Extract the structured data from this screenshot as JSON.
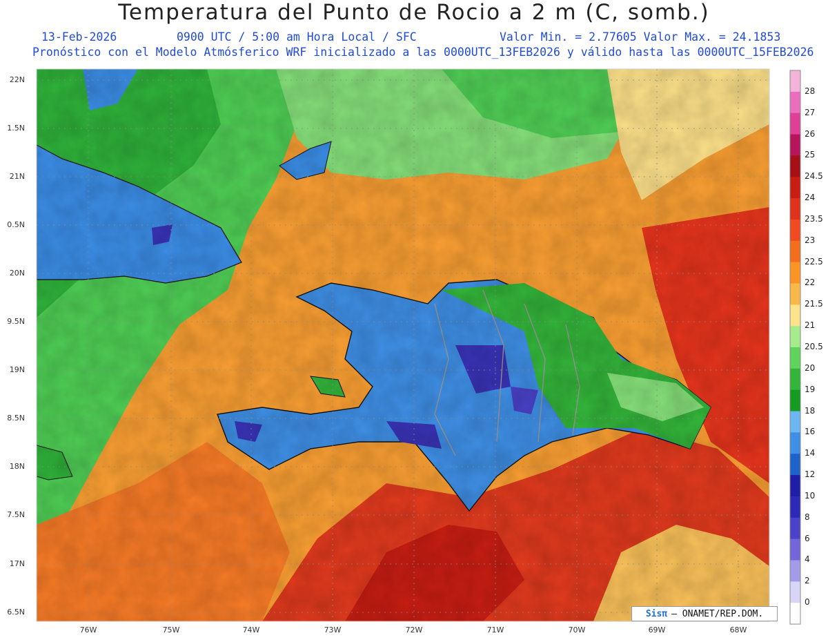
{
  "header": {
    "title": "Temperatura del Punto de Rocio a 2 m (C, somb.)",
    "date": "13-Feb-2026",
    "time": "0900 UTC / 5:00 am Hora Local / SFC",
    "minmax": "Valor Min. = 2.77605  Valor Max. = 24.1853",
    "model": "Pronóstico con el Modelo Atmósferico WRF inicializado a las 0000UTC_13FEB2026 y válido hasta las  0000UTC_15FEB2026"
  },
  "lat_labels": [
    "22N",
    "1.5N",
    "21N",
    "0.5N",
    "20N",
    "9.5N",
    "19N",
    "8.5N",
    "18N",
    "7.5N",
    "17N",
    "6.5N"
  ],
  "lon_labels": [
    "76W",
    "75W",
    "74W",
    "73W",
    "72W",
    "71W",
    "70W",
    "69W",
    "68W"
  ],
  "colorbar": {
    "labels": [
      "28",
      "27",
      "26",
      "25",
      "24.5",
      "24",
      "23.5",
      "23",
      "22.5",
      "22",
      "21.5",
      "21",
      "20.5",
      "20",
      "19",
      "18",
      "16",
      "14",
      "12",
      "10",
      "8",
      "6",
      "4",
      "2",
      "0"
    ],
    "colors": [
      "#f4b3d8",
      "#ec6fbf",
      "#de3f97",
      "#b8145e",
      "#a50f15",
      "#c81d12",
      "#e0311b",
      "#ef4a20",
      "#f56e1b",
      "#fa9425",
      "#fbb84a",
      "#fde48a",
      "#a6ec8c",
      "#5fd45a",
      "#33b53a",
      "#159a22",
      "#6cb6f2",
      "#3f8fe6",
      "#1e62cc",
      "#1e1ea6",
      "#2b29b5",
      "#4a42c9",
      "#7466da",
      "#a59ae8",
      "#d8d6f7",
      "#ffffff"
    ]
  },
  "credit": {
    "brand": "Sisπ",
    "text": "– ONAMET/REP.DOM."
  }
}
